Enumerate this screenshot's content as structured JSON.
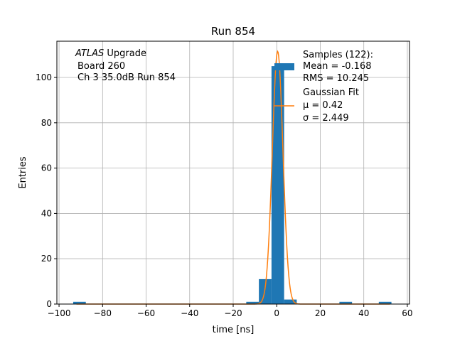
{
  "chart_data": {
    "type": "bar",
    "title": "Run 854",
    "xlabel": "time [ns]",
    "ylabel": "Entries",
    "xlim": [
      -101,
      61
    ],
    "ylim": [
      0,
      116
    ],
    "xticks": [
      -100,
      -80,
      -60,
      -40,
      -20,
      0,
      20,
      40,
      60
    ],
    "yticks": [
      0,
      20,
      40,
      60,
      80,
      100
    ],
    "grid": true,
    "legend_position": "top-right",
    "annotation": {
      "italic": "ATLAS",
      "line1_rest": " Upgrade",
      "line2": "Board 260",
      "line3": "Ch 3 35.0dB  Run 854"
    },
    "histogram": {
      "name": "Samples (122):",
      "stats": [
        "Mean = -0.168",
        "RMS = 10.245"
      ],
      "color": "#1f77b4",
      "bins": [
        {
          "x0": -93.5,
          "x1": -87.7,
          "value": 1
        },
        {
          "x0": -14.0,
          "x1": -8.2,
          "value": 1
        },
        {
          "x0": -8.2,
          "x1": -2.4,
          "value": 11
        },
        {
          "x0": -2.4,
          "x1": 3.4,
          "value": 105
        },
        {
          "x0": 3.4,
          "x1": 9.2,
          "value": 2
        },
        {
          "x0": 28.8,
          "x1": 34.6,
          "value": 1
        },
        {
          "x0": 46.9,
          "x1": 52.7,
          "value": 1
        }
      ]
    },
    "fit": {
      "name": "Gaussian Fit",
      "params": [
        "μ = 0.42",
        "σ = 2.449"
      ],
      "color": "#ff7f0e",
      "mu": 0.42,
      "sigma": 2.449,
      "amplitude": 111.5,
      "x_range": [
        -92,
        52
      ]
    }
  }
}
